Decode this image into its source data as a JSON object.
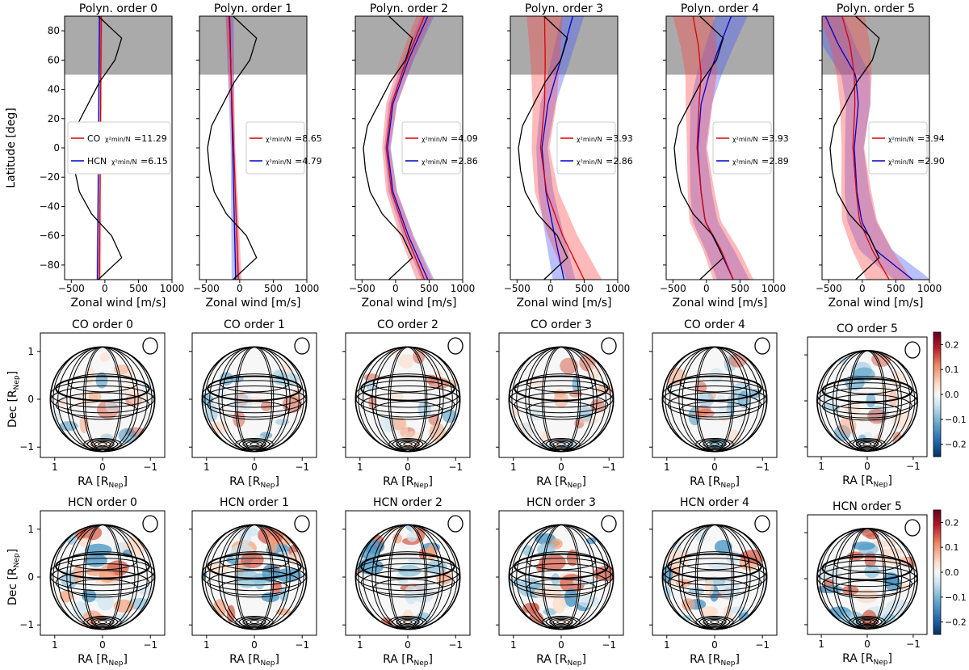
{
  "figure": {
    "top_row": {
      "ylabel": "Latitude [deg]",
      "xlabel": "Zonal wind [m/s]",
      "x_ticks": [
        "−500",
        "0",
        "500",
        "1000"
      ],
      "y_ticks": [
        "80",
        "60",
        "40",
        "20",
        "0",
        "−20",
        "−40",
        "−60",
        "−80"
      ],
      "panel_titles": [
        "Polyn. order 0",
        "Polyn. order 1",
        "Polyn. order 2",
        "Polyn. order 3",
        "Polyn. order 4",
        "Polyn. order 5"
      ]
    },
    "map_rows": {
      "ylabel_base": "Dec [R",
      "ylabel_sub": "Nep",
      "ylabel_end": "]",
      "xlabel_base": "RA [R",
      "xlabel_sub": "Nep",
      "xlabel_end": "]",
      "x_ticks": [
        "1",
        "0",
        "−1"
      ],
      "y_ticks": [
        "1",
        "0",
        "−1"
      ],
      "co_titles": [
        "CO order 0",
        "CO order 1",
        "CO order 2",
        "CO order 3",
        "CO order 4",
        "CO order 5"
      ],
      "hcn_titles": [
        "HCN order 0",
        "HCN order 1",
        "HCN order 2",
        "HCN order 3",
        "HCN order 4",
        "HCN order 5"
      ],
      "colorbar_ticks": [
        "0.2",
        "0.1",
        "0.0",
        "−0.1",
        "−0.2"
      ]
    },
    "legend": {
      "chi_label": "χ²min/N",
      "co_name": "CO",
      "hcn_name": "HCN"
    }
  },
  "chart_data": [
    {
      "type": "line",
      "panels": "Polyn. order 0..5",
      "xlabel": "Zonal wind [m/s]",
      "ylabel": "Latitude [deg]",
      "xlim": [
        -600,
        1000
      ],
      "ylim": [
        -90,
        90
      ],
      "shaded_region_latitude": [
        50,
        90
      ],
      "colors": {
        "CO": "#dd0000",
        "HCN": "#0000cc",
        "reference": "#000000",
        "shaded": "#aaaaaa"
      },
      "reference_profile": {
        "latitude": [
          -90,
          -75,
          -60,
          -45,
          -30,
          -15,
          0,
          15,
          30,
          45,
          60,
          75,
          90
        ],
        "wind": [
          -100,
          250,
          100,
          -200,
          -380,
          -450,
          -480,
          -420,
          -250,
          -80,
          150,
          250,
          -100
        ]
      },
      "series": [
        {
          "name": "CO",
          "order": 0,
          "chi2": "11.29",
          "latitude": [
            -90,
            90
          ],
          "wind": [
            -80,
            -55
          ]
        },
        {
          "name": "HCN",
          "order": 0,
          "chi2": "6.15",
          "latitude": [
            -90,
            90
          ],
          "wind": [
            -110,
            -80
          ]
        },
        {
          "name": "CO",
          "order": 1,
          "chi2": "8.65",
          "latitude": [
            -90,
            90
          ],
          "wind": [
            -20,
            -160
          ]
        },
        {
          "name": "HCN",
          "order": 1,
          "chi2": "4.79",
          "latitude": [
            -90,
            90
          ],
          "wind": [
            -60,
            -150
          ]
        },
        {
          "name": "CO",
          "order": 2,
          "chi2": "4.09",
          "latitude": [
            -90,
            -60,
            -30,
            0,
            30,
            60,
            90
          ],
          "wind": [
            430,
            160,
            -60,
            -140,
            -60,
            160,
            430
          ]
        },
        {
          "name": "HCN",
          "order": 2,
          "chi2": "2.86",
          "latitude": [
            -90,
            -60,
            -30,
            0,
            30,
            60,
            90
          ],
          "wind": [
            480,
            190,
            -40,
            -120,
            -40,
            190,
            480
          ]
        },
        {
          "name": "CO",
          "order": 3,
          "chi2": "3.93",
          "latitude": [
            -90,
            -60,
            -30,
            0,
            30,
            60,
            90
          ],
          "wind": [
            500,
            180,
            -60,
            -150,
            -90,
            -80,
            -90
          ]
        },
        {
          "name": "HCN",
          "order": 3,
          "chi2": "2.86",
          "latitude": [
            -90,
            -60,
            -30,
            0,
            30,
            60,
            90
          ],
          "wind": [
            200,
            60,
            -70,
            -130,
            -40,
            150,
            330
          ]
        },
        {
          "name": "CO",
          "order": 4,
          "chi2": "3.93",
          "latitude": [
            -90,
            -70,
            -50,
            -30,
            0,
            30,
            50,
            70,
            90
          ],
          "wind": [
            400,
            220,
            -20,
            -80,
            -140,
            -110,
            -80,
            -120,
            -200
          ]
        },
        {
          "name": "HCN",
          "order": 4,
          "chi2": "2.89",
          "latitude": [
            -90,
            -70,
            -50,
            -30,
            0,
            30,
            50,
            70,
            90
          ],
          "wind": [
            400,
            200,
            -20,
            -80,
            -130,
            -80,
            40,
            200,
            370
          ]
        },
        {
          "name": "CO",
          "order": 5,
          "chi2": "3.94",
          "latitude": [
            -90,
            -70,
            -50,
            -30,
            0,
            30,
            50,
            70,
            90
          ],
          "wind": [
            400,
            150,
            -40,
            -90,
            -140,
            -110,
            -120,
            -180,
            -300
          ]
        },
        {
          "name": "HCN",
          "order": 5,
          "chi2": "2.90",
          "latitude": [
            -90,
            -70,
            -50,
            -30,
            0,
            30,
            50,
            70,
            90
          ],
          "wind": [
            750,
            200,
            -10,
            -80,
            -120,
            -60,
            -100,
            -350,
            -550
          ]
        }
      ]
    },
    {
      "type": "heatmap",
      "panels": "CO order 0..5 and HCN order 0..5",
      "xlabel": "RA [RNep]",
      "ylabel": "Dec [RNep]",
      "xlim": [
        1.3,
        -1.3
      ],
      "ylim": [
        -1.3,
        1.3
      ],
      "colorbar_range": [
        -0.25,
        0.25
      ],
      "colormap": "RdBu_r"
    }
  ]
}
